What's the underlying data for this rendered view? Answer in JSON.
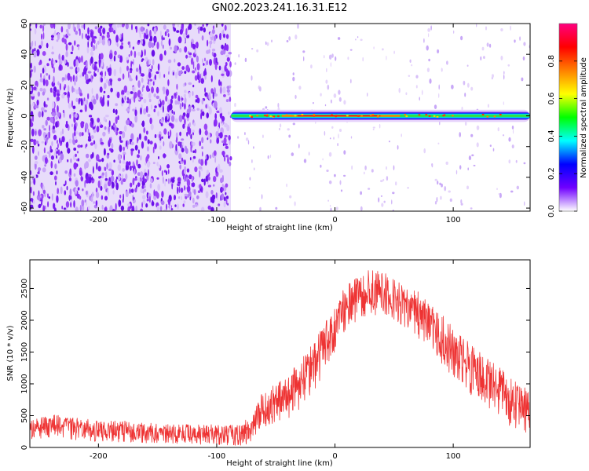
{
  "figure_title": "GN02.2023.241.16.31.E12",
  "chart_data": [
    {
      "type": "heatmap",
      "title": "GN02.2023.241.16.31.E12",
      "xlabel": "Height of straight line (km)",
      "ylabel": "Frequency (Hz)",
      "xlim": [
        -258,
        165
      ],
      "ylim": [
        -62,
        60
      ],
      "x_ticks": [
        -200,
        -100,
        0,
        100
      ],
      "x_tick_labels": [
        "-200",
        "-100",
        "0",
        "100"
      ],
      "y_ticks": [
        -60,
        -40,
        -20,
        0,
        20,
        40,
        60
      ],
      "y_tick_labels": [
        "-60",
        "-40",
        "-20",
        "0",
        "20",
        "40",
        "60"
      ],
      "noise_region_x": [
        -258,
        -88
      ],
      "signal_track": {
        "x_start": -88,
        "x_end": 165,
        "frequency_hz": 0,
        "half_width_hz": 2,
        "high_amplitude_x": [
          -45,
          55
        ]
      },
      "colorbar": {
        "label": "Normalized spectral amplitude",
        "range": [
          0,
          1
        ],
        "ticks": [
          0.0,
          0.2,
          0.4,
          0.6,
          0.8
        ],
        "tick_labels": [
          "0.0",
          "0.2",
          "0.4",
          "0.6",
          "0.8"
        ],
        "colors": [
          "#ffffff",
          "#7000ff",
          "#0000ff",
          "#00ffff",
          "#00ff00",
          "#ffff00",
          "#ff8000",
          "#ff0000",
          "#ff0080"
        ]
      },
      "grid": false,
      "legend": "none"
    },
    {
      "type": "line",
      "xlabel": "Height of straight line (km)",
      "ylabel": "SNR (10 * v/v)",
      "xlim": [
        -258,
        165
      ],
      "ylim": [
        0,
        2950
      ],
      "x_ticks": [
        -200,
        -100,
        0,
        100
      ],
      "x_tick_labels": [
        "-200",
        "-100",
        "0",
        "100"
      ],
      "y_ticks": [
        0,
        500,
        1000,
        1500,
        2000,
        2500
      ],
      "y_tick_labels": [
        "0",
        "500",
        "1000",
        "1500",
        "2000",
        "2500"
      ],
      "color": "#ee3333",
      "series": [
        {
          "x": [
            -258,
            -240,
            -220,
            -200,
            -180,
            -160,
            -140,
            -120,
            -100,
            -90,
            -80,
            -70,
            -65,
            -60,
            -50,
            -40,
            -30,
            -20,
            -10,
            0,
            10,
            20,
            30,
            40,
            50,
            60,
            70,
            80,
            90,
            100,
            110,
            120,
            130,
            140,
            150,
            160,
            165
          ],
          "upper": [
            450,
            520,
            470,
            430,
            420,
            390,
            360,
            360,
            360,
            360,
            380,
            500,
            800,
            900,
            1000,
            1150,
            1350,
            1600,
            1900,
            2300,
            2550,
            2700,
            2800,
            2780,
            2650,
            2520,
            2450,
            2300,
            2100,
            1900,
            1700,
            1550,
            1400,
            1250,
            1100,
            950,
            850
          ],
          "lower": [
            120,
            150,
            110,
            90,
            80,
            70,
            60,
            50,
            40,
            20,
            20,
            80,
            200,
            250,
            350,
            450,
            600,
            800,
            1100,
            1500,
            1900,
            2000,
            2100,
            2050,
            1950,
            1850,
            1700,
            1500,
            1300,
            1100,
            900,
            750,
            600,
            450,
            300,
            200,
            150
          ]
        }
      ],
      "grid": false,
      "legend": "none"
    }
  ]
}
